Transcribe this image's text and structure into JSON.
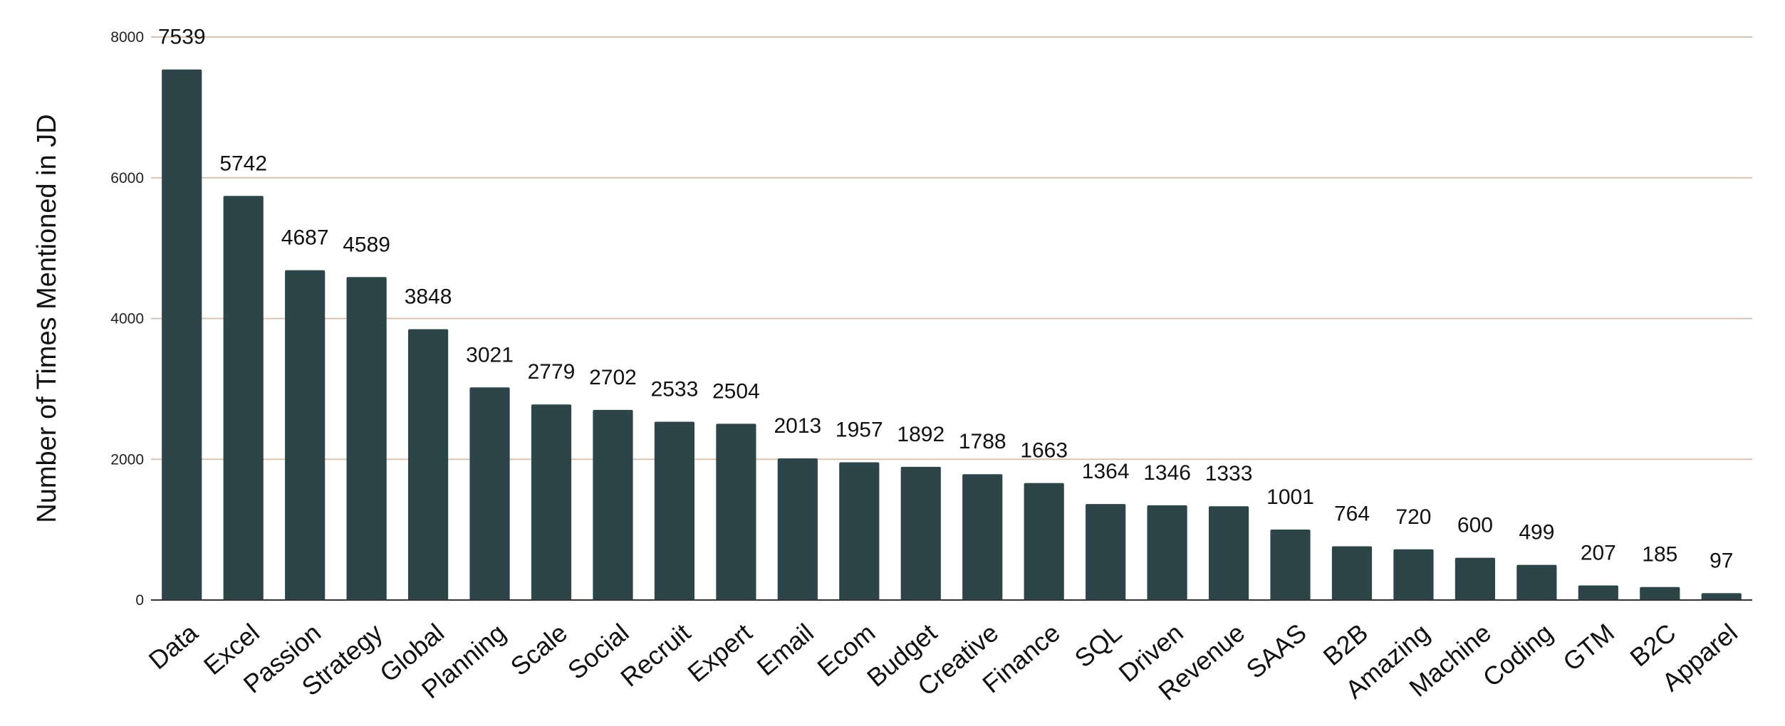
{
  "chart_data": {
    "type": "bar",
    "title": "",
    "xlabel": "",
    "ylabel": "Number of Times Mentioned in JD",
    "ylim": [
      0,
      8000
    ],
    "yticks": [
      0,
      2000,
      4000,
      6000,
      8000
    ],
    "grid": true,
    "legend": "none",
    "categories": [
      "Data",
      "Excel",
      "Passion",
      "Strategy",
      "Global",
      "Planning",
      "Scale",
      "Social",
      "Recruit",
      "Expert",
      "Email",
      "Ecom",
      "Budget",
      "Creative",
      "Finance",
      "SQL",
      "Driven",
      "Revenue",
      "SAAS",
      "B2B",
      "Amazing",
      "Machine",
      "Coding",
      "GTM",
      "B2C",
      "Apparel"
    ],
    "values": [
      7539,
      5742,
      4687,
      4589,
      3848,
      3021,
      2779,
      2702,
      2533,
      2504,
      2013,
      1957,
      1892,
      1788,
      1663,
      1364,
      1346,
      1333,
      1001,
      764,
      720,
      600,
      499,
      207,
      185,
      97
    ],
    "colors": {
      "bar": "#2d4548",
      "grid": "#d9c3b3",
      "axis": "#333333"
    }
  }
}
